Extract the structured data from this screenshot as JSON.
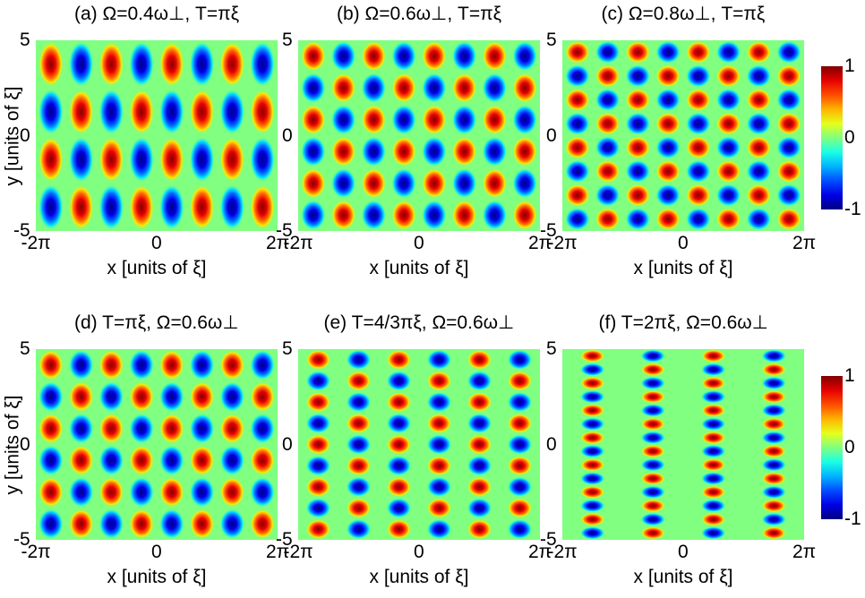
{
  "chart_data": [
    {
      "type": "heatmap",
      "panel": "a",
      "title": "(a) Ω=0.4ω⊥, T=πξ",
      "xlabel": "x [units of ξ]",
      "ylabel": "y [units of ξ]",
      "xticks": [
        "-2π",
        "0",
        "2π"
      ],
      "yticks": [
        "5",
        "0",
        "-5"
      ],
      "xlim": [
        -6.283,
        6.283
      ],
      "ylim": [
        -5,
        5
      ],
      "columns": 8,
      "rows": 4,
      "colormap": "jet",
      "clim": [
        -1,
        1
      ]
    },
    {
      "type": "heatmap",
      "panel": "b",
      "title": "(b) Ω=0.6ω⊥, T=πξ",
      "xlabel": "x [units of ξ]",
      "ylabel": "",
      "xticks": [
        "-2π",
        "0",
        "2π"
      ],
      "yticks": [
        "5",
        "0",
        "-5"
      ],
      "xlim": [
        -6.283,
        6.283
      ],
      "ylim": [
        -5,
        5
      ],
      "columns": 8,
      "rows": 6,
      "colormap": "jet",
      "clim": [
        -1,
        1
      ]
    },
    {
      "type": "heatmap",
      "panel": "c",
      "title": "(c) Ω=0.8ω⊥, T=πξ",
      "xlabel": "x [units of ξ]",
      "ylabel": "",
      "xticks": [
        "-2π",
        "0",
        "2π"
      ],
      "yticks": [
        "5",
        "0",
        "-5"
      ],
      "xlim": [
        -6.283,
        6.283
      ],
      "ylim": [
        -5,
        5
      ],
      "columns": 8,
      "rows": 8,
      "colormap": "jet",
      "clim": [
        -1,
        1
      ],
      "colorbar": {
        "ticks": [
          "1",
          "0",
          "-1"
        ]
      }
    },
    {
      "type": "heatmap",
      "panel": "d",
      "title": "(d) T=πξ, Ω=0.6ω⊥",
      "xlabel": "x [units of ξ]",
      "ylabel": "y [units of ξ]",
      "xticks": [
        "-2π",
        "0",
        "2π"
      ],
      "yticks": [
        "5",
        "0",
        "-5"
      ],
      "xlim": [
        -6.283,
        6.283
      ],
      "ylim": [
        -5,
        5
      ],
      "columns": 8,
      "rows": 6,
      "colormap": "jet",
      "clim": [
        -1,
        1
      ]
    },
    {
      "type": "heatmap",
      "panel": "e",
      "title": "(e) T=4/3πξ, Ω=0.6ω⊥",
      "xlabel": "x [units of ξ]",
      "ylabel": "",
      "xticks": [
        "-2π",
        "0",
        "2π"
      ],
      "yticks": [
        "5",
        "0",
        "-5"
      ],
      "xlim": [
        -6.283,
        6.283
      ],
      "ylim": [
        -5,
        5
      ],
      "columns": 6,
      "rows": 9,
      "colormap": "jet",
      "clim": [
        -1,
        1
      ]
    },
    {
      "type": "heatmap",
      "panel": "f",
      "title": "(f) T=2πξ, Ω=0.6ω⊥",
      "xlabel": "x [units of ξ]",
      "ylabel": "",
      "xticks": [
        "-2π",
        "0",
        "2π"
      ],
      "yticks": [
        "5",
        "0",
        "-5"
      ],
      "xlim": [
        -6.283,
        6.283
      ],
      "ylim": [
        -5,
        5
      ],
      "columns": 4,
      "rows": 14,
      "colormap": "jet",
      "clim": [
        -1,
        1
      ],
      "colorbar": {
        "ticks": [
          "1",
          "0",
          "-1"
        ]
      }
    }
  ]
}
